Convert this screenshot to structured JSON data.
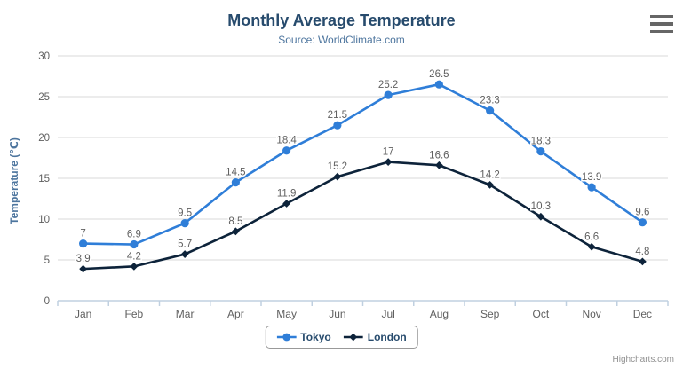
{
  "header": {
    "title": "Monthly Average Temperature",
    "subtitle": "Source: WorldClimate.com"
  },
  "credits": "Highcharts.com",
  "chart_data": {
    "type": "line",
    "title": "Monthly Average Temperature",
    "subtitle": "Source: WorldClimate.com",
    "categories": [
      "Jan",
      "Feb",
      "Mar",
      "Apr",
      "May",
      "Jun",
      "Jul",
      "Aug",
      "Sep",
      "Oct",
      "Nov",
      "Dec"
    ],
    "series": [
      {
        "name": "Tokyo",
        "color": "#2f7ed8",
        "marker": "circle",
        "values": [
          7,
          6.9,
          9.5,
          14.5,
          18.4,
          21.5,
          25.2,
          26.5,
          23.3,
          18.3,
          13.9,
          9.6
        ]
      },
      {
        "name": "London",
        "color": "#0d233a",
        "marker": "diamond",
        "values": [
          3.9,
          4.2,
          5.7,
          8.5,
          11.9,
          15.2,
          17,
          16.6,
          14.2,
          10.3,
          6.6,
          4.8
        ]
      }
    ],
    "xlabel": "",
    "ylabel": "Temperature (℃)",
    "ylim": [
      0,
      30
    ],
    "ytick_interval": 5,
    "grid": true,
    "legend_position": "bottom",
    "data_labels": true,
    "style": {
      "grid_color": "#d8d8d8",
      "axis_line_color": "#c0d0e0",
      "tick_color": "#c0d0e0",
      "axis_label_color": "#606060",
      "axis_title_color": "#4d759e",
      "data_label_color": "#606060"
    }
  }
}
